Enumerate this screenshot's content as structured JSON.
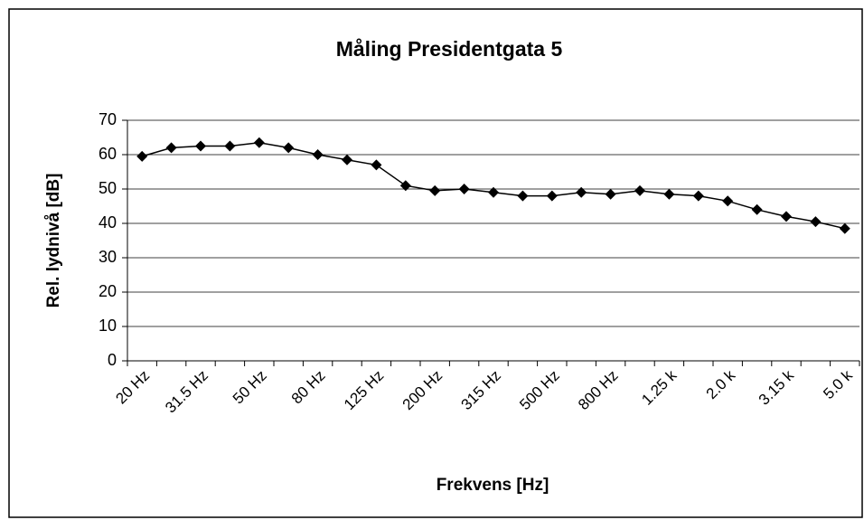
{
  "chart_data": {
    "type": "line",
    "title": "Måling Presidentgata 5",
    "x_label": "Frekvens [Hz]",
    "y_label": "Rel. lydnivå [dB]",
    "categories": [
      "20 Hz",
      null,
      "31.5 Hz",
      null,
      "50 Hz",
      null,
      "80 Hz",
      null,
      "125 Hz",
      null,
      "200 Hz",
      null,
      "315 Hz",
      null,
      "500 Hz",
      null,
      "800 Hz",
      null,
      "1.25 k",
      null,
      "2.0 k",
      null,
      "3.15 k",
      null,
      "5.0 k"
    ],
    "values": [
      59.5,
      62,
      62.5,
      62.5,
      63.5,
      62,
      60,
      58.5,
      57,
      51,
      49.5,
      50,
      49,
      48,
      48,
      49,
      48.5,
      49.5,
      48.5,
      48,
      46.5,
      44,
      42,
      40.5,
      38.5
    ],
    "color": "#000000",
    "ylim": [
      0,
      70
    ],
    "yticks": [
      0,
      10,
      20,
      30,
      40,
      50,
      60,
      70
    ],
    "grid": true
  }
}
